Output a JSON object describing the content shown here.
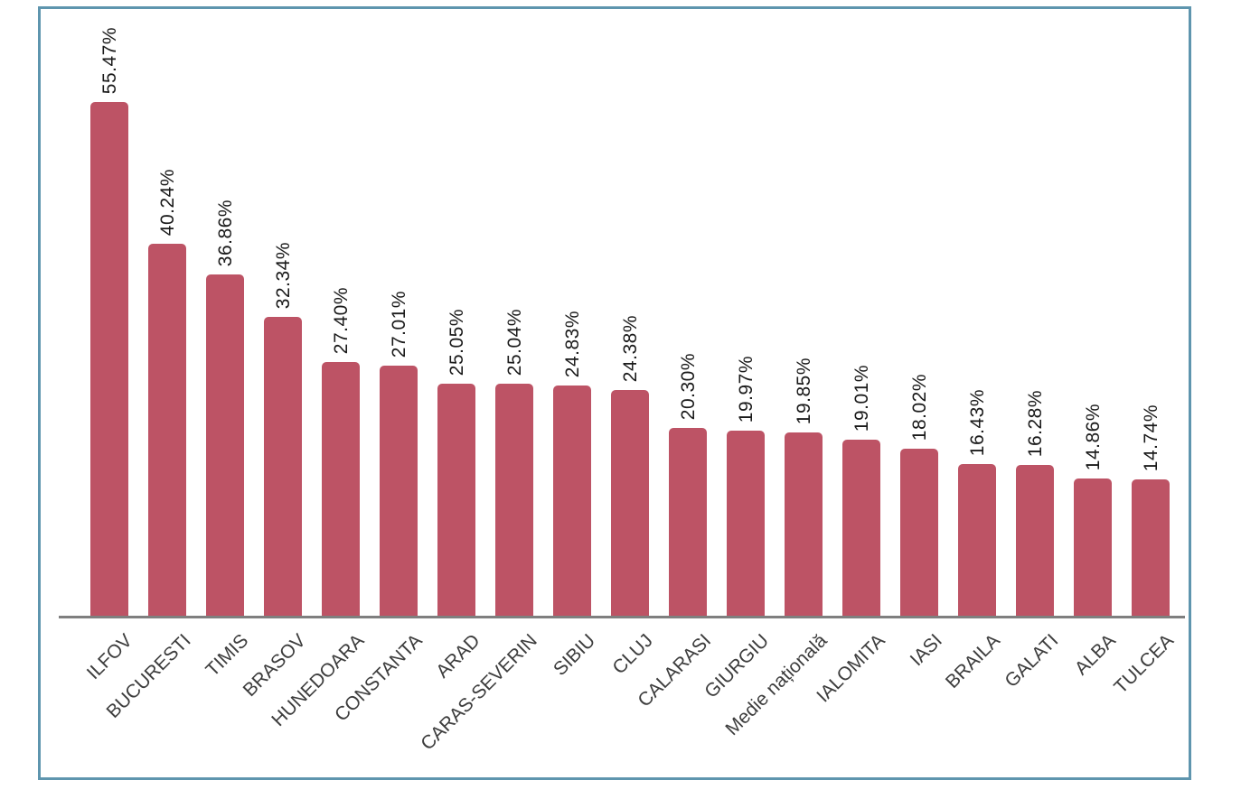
{
  "panel": {
    "background": "#ffffff",
    "frame_border_color": "#5e95ae"
  },
  "chart_data": {
    "type": "bar",
    "categories": [
      "ILFOV",
      "BUCURESTI",
      "TIMIS",
      "BRASOV",
      "HUNEDOARA",
      "CONSTANTA",
      "ARAD",
      "CARAS-SEVERIN",
      "SIBIU",
      "CLUJ",
      "CALARASI",
      "GIURGIU",
      "Medie națională",
      "IALOMITA",
      "IASI",
      "BRAILA",
      "GALATI",
      "ALBA",
      "TULCEA"
    ],
    "values": [
      55.47,
      40.24,
      36.86,
      32.34,
      27.4,
      27.01,
      25.05,
      25.04,
      24.83,
      24.38,
      20.3,
      19.97,
      19.85,
      19.01,
      18.02,
      16.43,
      16.28,
      14.86,
      14.74
    ],
    "value_labels": [
      "55.47%",
      "40.24%",
      "36.86%",
      "32.34%",
      "27.40%",
      "27.01%",
      "25.05%",
      "25.04%",
      "24.83%",
      "24.38%",
      "20.30%",
      "19.97%",
      "19.85%",
      "19.01%",
      "18.02%",
      "16.43%",
      "16.28%",
      "14.86%",
      "14.74%"
    ],
    "xlabel": "",
    "ylabel": "",
    "ylim": [
      0,
      60
    ],
    "grid": false,
    "legend": false,
    "x_tick_rotation": -45,
    "value_label_rotation": -90,
    "bar_color": "#bd5365",
    "axis_line_color": "#7f7f7f",
    "value_text_color": "#1a1a1a",
    "category_text_color": "#3d3d3d"
  }
}
